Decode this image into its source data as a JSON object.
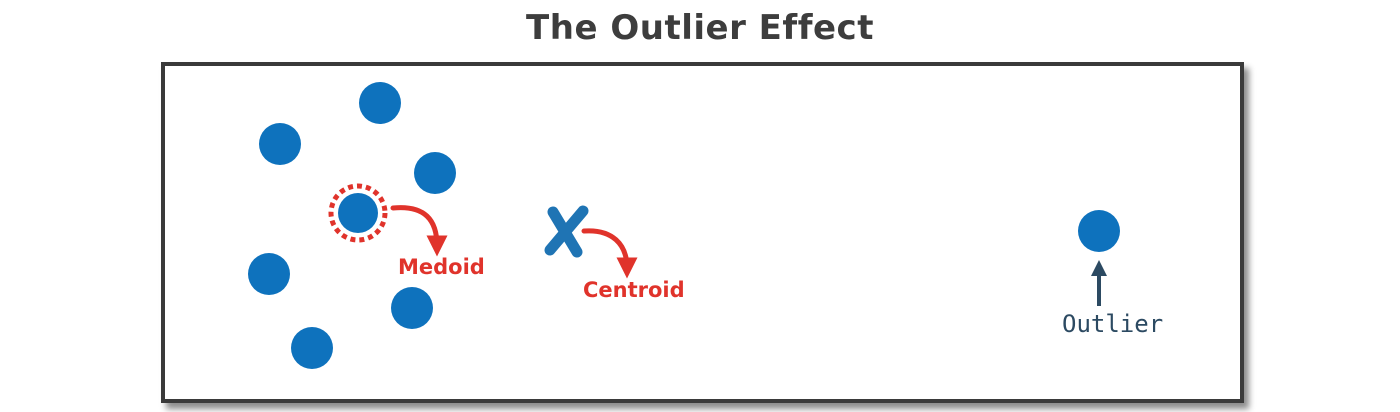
{
  "title": "The Outlier Effect",
  "labels": {
    "medoid": "Medoid",
    "centroid": "Centroid",
    "outlier": "Outlier"
  },
  "colors": {
    "title": "#3d3d3d",
    "frame": "#3a3a3a",
    "point": "#0e72bd",
    "centroid_mark": "#1f74b4",
    "medoid_accent": "#e0332b",
    "outlier_text": "#2c4a62"
  },
  "icons": {
    "centroid_mark": "x-mark-icon",
    "medoid_ring": "dashed-ring-icon",
    "arrows": "curved-arrow-icon"
  }
}
